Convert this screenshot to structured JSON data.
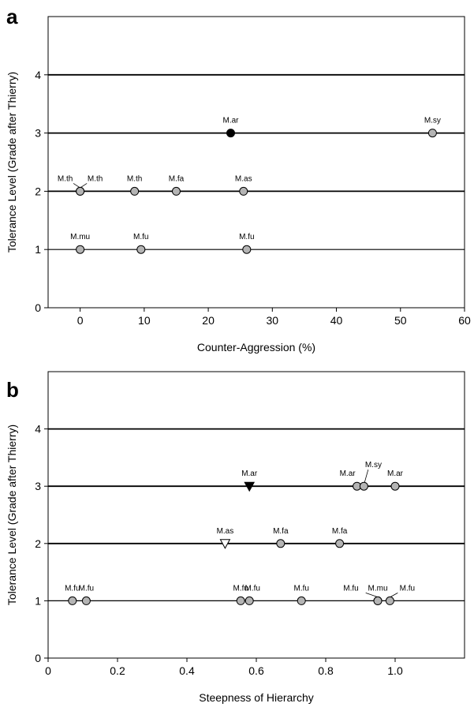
{
  "chart_data": [
    {
      "panel": "a",
      "type": "scatter",
      "xlabel": "Counter-Aggression (%)",
      "ylabel": "Tolerance Level (Grade after Thierry)",
      "xlim": [
        -5,
        60
      ],
      "ylim": [
        0,
        5
      ],
      "x_ticks": [
        "0",
        "10",
        "20",
        "30",
        "40",
        "50",
        "60"
      ],
      "y_ticks": [
        "0",
        "1",
        "2",
        "3",
        "4"
      ],
      "grid": "horizontal lines at 1, 2, 3, 4",
      "points": [
        {
          "label": "M.th",
          "x": 0,
          "y": 2,
          "marker": "circle-gray"
        },
        {
          "label": "M.th",
          "x": 0,
          "y": 2,
          "marker": "circle-gray"
        },
        {
          "label": "M.th",
          "x": 8.5,
          "y": 2,
          "marker": "circle-gray"
        },
        {
          "label": "M.fa",
          "x": 15,
          "y": 2,
          "marker": "circle-gray"
        },
        {
          "label": "M.as",
          "x": 25.5,
          "y": 2,
          "marker": "circle-gray"
        },
        {
          "label": "M.ar",
          "x": 23.5,
          "y": 3,
          "marker": "circle-black"
        },
        {
          "label": "M.sy",
          "x": 55,
          "y": 3,
          "marker": "circle-gray"
        },
        {
          "label": "M.mu",
          "x": 0,
          "y": 1,
          "marker": "circle-gray"
        },
        {
          "label": "M.fu",
          "x": 9.5,
          "y": 1,
          "marker": "circle-gray"
        },
        {
          "label": "M.fu",
          "x": 26,
          "y": 1,
          "marker": "circle-gray"
        }
      ]
    },
    {
      "panel": "b",
      "type": "scatter",
      "xlabel": "Steepness of Hierarchy",
      "ylabel": "Tolerance Level (Grade after Thierry)",
      "xlim": [
        0,
        1.2
      ],
      "ylim": [
        0,
        5
      ],
      "x_ticks": [
        "0",
        "0.2",
        "0.4",
        "0.6",
        "0.8",
        "1.0"
      ],
      "y_ticks": [
        "0",
        "1",
        "2",
        "3",
        "4"
      ],
      "grid": "horizontal lines at 1, 2, 3, 4",
      "points": [
        {
          "label": "M.ar",
          "x": 0.58,
          "y": 3,
          "marker": "triangle-down-black"
        },
        {
          "label": "M.ar",
          "x": 0.89,
          "y": 3,
          "marker": "circle-gray"
        },
        {
          "label": "M.sy",
          "x": 0.91,
          "y": 3,
          "marker": "circle-gray"
        },
        {
          "label": "M.ar",
          "x": 1.0,
          "y": 3,
          "marker": "circle-gray"
        },
        {
          "label": "M.as",
          "x": 0.51,
          "y": 2,
          "marker": "triangle-down-white"
        },
        {
          "label": "M.fa",
          "x": 0.67,
          "y": 2,
          "marker": "circle-gray"
        },
        {
          "label": "M.fa",
          "x": 0.84,
          "y": 2,
          "marker": "circle-gray"
        },
        {
          "label": "M.fu",
          "x": 0.07,
          "y": 1,
          "marker": "circle-gray"
        },
        {
          "label": "M.fu",
          "x": 0.11,
          "y": 1,
          "marker": "circle-gray"
        },
        {
          "label": "M.fu",
          "x": 0.555,
          "y": 1,
          "marker": "circle-gray"
        },
        {
          "label": "M.fu",
          "x": 0.58,
          "y": 1,
          "marker": "circle-gray"
        },
        {
          "label": "M.fu",
          "x": 0.73,
          "y": 1,
          "marker": "circle-gray"
        },
        {
          "label": "M.fu",
          "x": 0.95,
          "y": 1,
          "marker": "circle-gray"
        },
        {
          "label": "M.mu",
          "x": 0.95,
          "y": 1,
          "marker": "circle-gray"
        },
        {
          "label": "M.fu",
          "x": 0.985,
          "y": 1,
          "marker": "circle-gray"
        }
      ]
    }
  ],
  "colors": {
    "gray_fill": "#b4b4b4",
    "black": "#000000",
    "white": "#ffffff"
  }
}
